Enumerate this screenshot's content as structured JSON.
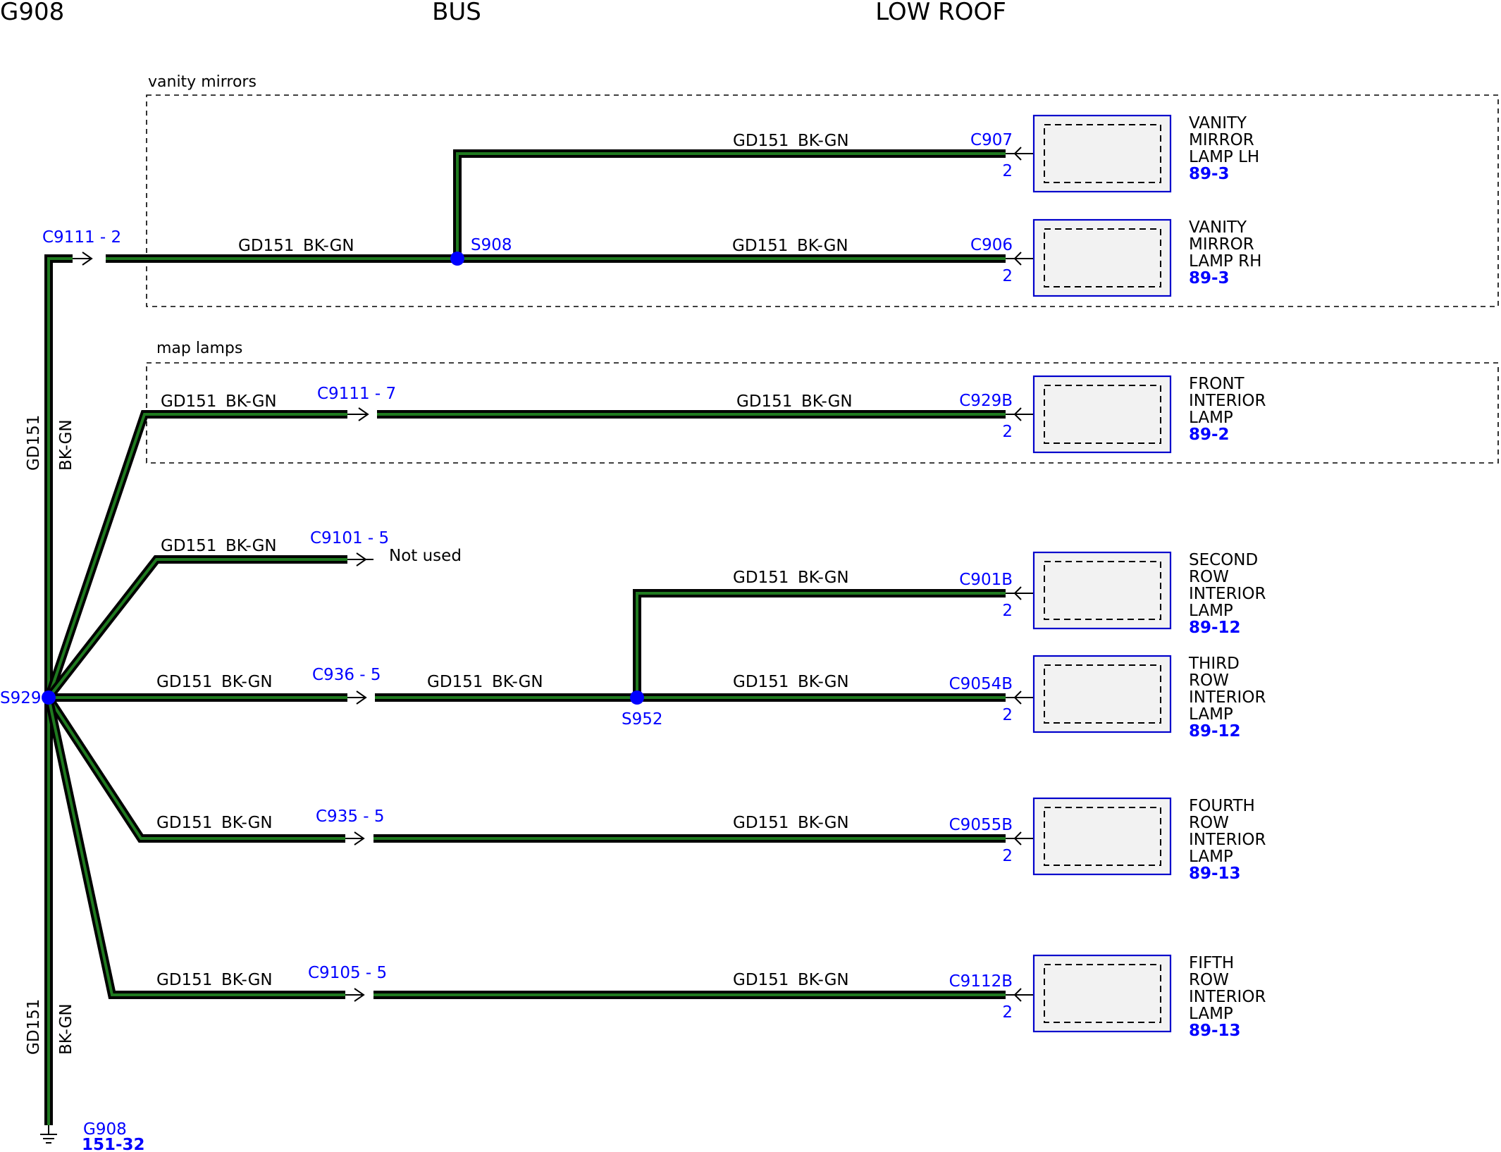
{
  "headers": {
    "left": "G908",
    "middle": "BUS",
    "right": "LOW ROOF"
  },
  "groups": {
    "vanity": "vanity mirrors",
    "map": "map lamps"
  },
  "wire": {
    "circuit": "GD151",
    "color": "BK-GN",
    "color_hex_outer": "#000000",
    "color_hex_inner": "#1f7a1f"
  },
  "splices": {
    "s929": "S929",
    "s908": "S908",
    "s952": "S952"
  },
  "connectors": {
    "c9111_2": "C9111 - 2",
    "c9111_7": "C9111 - 7",
    "c9101_5": "C9101 - 5",
    "c936_5": "C936  - 5",
    "c935_5": "C935  - 5",
    "c9105_5": "C9105 - 5"
  },
  "not_used": "Not used",
  "ground": {
    "name": "G908",
    "ref": "151-32"
  },
  "components": [
    {
      "connector": "C907",
      "pin": "2",
      "lines": [
        "VANITY",
        "MIRROR",
        "LAMP LH"
      ],
      "ref": "89-3"
    },
    {
      "connector": "C906",
      "pin": "2",
      "lines": [
        "VANITY",
        "MIRROR",
        "LAMP RH"
      ],
      "ref": "89-3"
    },
    {
      "connector": "C929B",
      "pin": "2",
      "lines": [
        "FRONT",
        "INTERIOR",
        "LAMP"
      ],
      "ref": "89-2"
    },
    {
      "connector": "C901B",
      "pin": "2",
      "lines": [
        "SECOND",
        "ROW",
        "INTERIOR",
        "LAMP"
      ],
      "ref": "89-12"
    },
    {
      "connector": "C9054B",
      "pin": "2",
      "lines": [
        "THIRD",
        "ROW",
        "INTERIOR",
        "LAMP"
      ],
      "ref": "89-12"
    },
    {
      "connector": "C9055B",
      "pin": "2",
      "lines": [
        "FOURTH",
        "ROW",
        "INTERIOR",
        "LAMP"
      ],
      "ref": "89-13"
    },
    {
      "connector": "C9112B",
      "pin": "2",
      "lines": [
        "FIFTH",
        "ROW",
        "INTERIOR",
        "LAMP"
      ],
      "ref": "89-13"
    }
  ]
}
